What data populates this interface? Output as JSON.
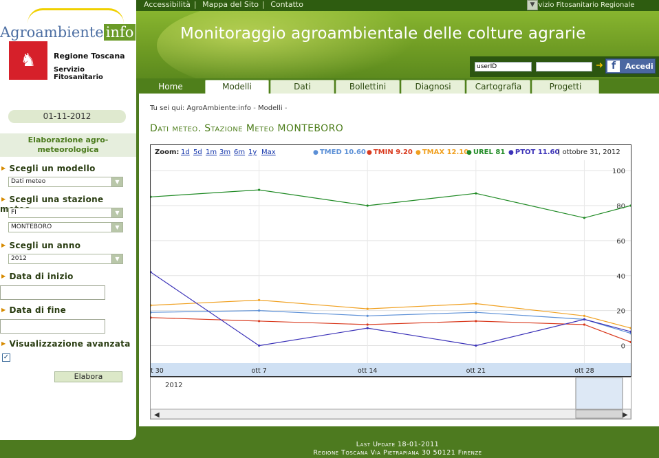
{
  "topbar": {
    "links": [
      "Accessibilità",
      "Mappa del Sito",
      "Contatto"
    ],
    "region_select": "Servizio Fitosanitario Regionale"
  },
  "header": {
    "title": "Monitoraggio agroambientale delle colture agrarie",
    "login": {
      "user_value": "userID",
      "password_value": ""
    },
    "fb_label": "Accedi"
  },
  "logo": {
    "brand": "Agroambiente",
    "brand_suffix": "info",
    "org1": "Regione Toscana",
    "org2": "Servizio Fitosanitario"
  },
  "tabs": [
    {
      "label": "Home",
      "active": false
    },
    {
      "label": "Modelli",
      "active": true
    },
    {
      "label": "Dati",
      "active": false
    },
    {
      "label": "Bollettini",
      "active": false
    },
    {
      "label": "Diagnosi",
      "active": false
    },
    {
      "label": "Cartografia",
      "active": false
    },
    {
      "label": "Progetti",
      "active": false
    }
  ],
  "sidebar": {
    "date": "01-11-2012",
    "section_title": "Elaborazione agro-meteorologica",
    "model_label": "Scegli un modello",
    "model_value": "Dati meteo",
    "station_label": "Scegli una stazione meteo",
    "province_value": "FI",
    "station_value": "MONTEBORO",
    "year_label": "Scegli un anno",
    "year_value": "2012",
    "start_label": "Data di inizio",
    "end_label": "Data di fine",
    "advanced_label": "Visualizzazione avanzata",
    "advanced_checked": true,
    "submit_label": "Elabora"
  },
  "breadcrumb": {
    "prefix": "Tu sei qui:",
    "items": [
      "AgroAmbiente:info",
      "Modelli"
    ]
  },
  "page_title": "Dati meteo. Stazione Meteo MONTEBORO",
  "chart_data": {
    "type": "line",
    "zoom_label": "Zoom:",
    "zoom_options": [
      "1d",
      "5d",
      "1m",
      "3m",
      "6m",
      "1y",
      "Max"
    ],
    "legend": [
      {
        "key": "TMED",
        "value": "10.60",
        "color": "#5b8fd6"
      },
      {
        "key": "TMIN",
        "value": "9.20",
        "color": "#d93a1e"
      },
      {
        "key": "TMAX",
        "value": "12.10",
        "color": "#f0a020"
      },
      {
        "key": "UREL",
        "value": "81",
        "color": "#1f8a24"
      },
      {
        "key": "PTOT",
        "value": "11.60",
        "color": "#3b32b8"
      }
    ],
    "date_label": "ottobre 31, 2012",
    "x": [
      "2012-09-30",
      "2012-10-07",
      "2012-10-14",
      "2012-10-21",
      "2012-10-28",
      "2012-10-31"
    ],
    "x_ticks": [
      "t 30",
      "ott 7",
      "ott 14",
      "ott 21",
      "ott 28"
    ],
    "y_ticks": [
      "100",
      "80",
      "60",
      "40",
      "20",
      "0"
    ],
    "ylim": [
      -10,
      102
    ],
    "series": [
      {
        "name": "UREL",
        "color": "#1f8a24",
        "values": [
          85,
          89,
          80,
          87,
          73,
          80
        ]
      },
      {
        "name": "TMAX",
        "color": "#f0a020",
        "values": [
          23,
          26,
          21,
          24,
          17,
          10
        ]
      },
      {
        "name": "TMED",
        "color": "#5b8fd6",
        "values": [
          19,
          20,
          17,
          19,
          15,
          7
        ]
      },
      {
        "name": "TMIN",
        "color": "#d93a1e",
        "values": [
          16,
          14,
          12,
          14,
          12,
          2
        ]
      },
      {
        "name": "PTOT",
        "color": "#3b32b8",
        "values": [
          42,
          0,
          10,
          0,
          15,
          8
        ]
      }
    ],
    "navigator_label": "2012"
  },
  "footer": {
    "line1": "Last Update 18-01-2011",
    "line2": "Regione Toscana Via Pietrapiana 30 50121 Firenze"
  }
}
